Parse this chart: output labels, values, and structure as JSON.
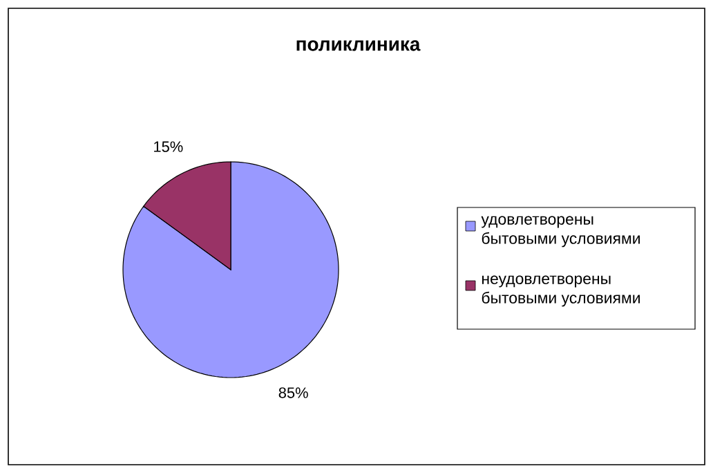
{
  "chart_data": {
    "type": "pie",
    "title": "поликлиника",
    "categories": [
      "удовлетворены бытовыми условиями",
      "неудовлетворены бытовыми условиями"
    ],
    "values": [
      85,
      15
    ],
    "colors": [
      "#9999ff",
      "#993366"
    ],
    "value_labels": [
      "85%",
      "15%"
    ],
    "legend": "right"
  }
}
